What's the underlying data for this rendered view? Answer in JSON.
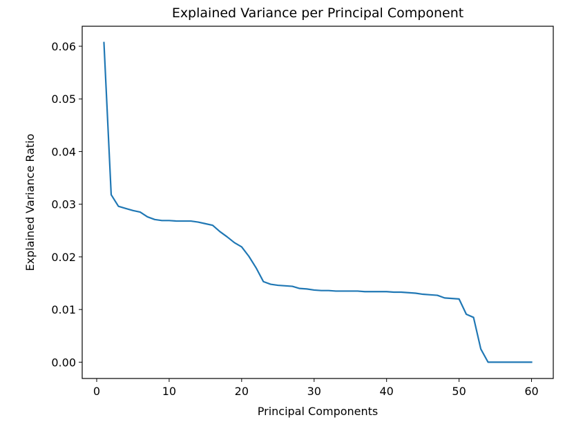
{
  "chart_data": {
    "type": "line",
    "title": "Explained Variance per Principal Component",
    "xlabel": "Principal Components",
    "ylabel": "Explained Variance Ratio",
    "xlim": [
      -2,
      63
    ],
    "ylim": [
      -0.0031,
      0.0638
    ],
    "x_ticks": [
      0,
      10,
      20,
      30,
      40,
      50,
      60
    ],
    "y_ticks": [
      0.0,
      0.01,
      0.02,
      0.03,
      0.04,
      0.05,
      0.06
    ],
    "x_tick_labels": [
      "0",
      "10",
      "20",
      "30",
      "40",
      "50",
      "60"
    ],
    "y_tick_labels": [
      "0.00",
      "0.01",
      "0.02",
      "0.03",
      "0.04",
      "0.05",
      "0.06"
    ],
    "grid": false,
    "line_color": "#1f77b4",
    "series": [
      {
        "x": [
          1,
          2,
          3,
          4,
          5,
          6,
          7,
          8,
          9,
          10,
          11,
          12,
          13,
          14,
          15,
          16,
          17,
          18,
          19,
          20,
          21,
          22,
          23,
          24,
          25,
          26,
          27,
          28,
          29,
          30,
          31,
          32,
          33,
          34,
          35,
          36,
          37,
          38,
          39,
          40,
          41,
          42,
          43,
          44,
          45,
          46,
          47,
          48,
          49,
          50,
          51,
          52,
          53,
          54,
          55,
          56,
          57,
          58,
          59,
          60
        ],
        "values": [
          0.0607,
          0.0318,
          0.0296,
          0.0292,
          0.0288,
          0.0285,
          0.0276,
          0.0271,
          0.0269,
          0.0269,
          0.0268,
          0.0268,
          0.0268,
          0.0266,
          0.0263,
          0.026,
          0.0248,
          0.0238,
          0.0227,
          0.0219,
          0.0201,
          0.0179,
          0.0153,
          0.0148,
          0.0146,
          0.0145,
          0.0144,
          0.014,
          0.0139,
          0.0137,
          0.0136,
          0.0136,
          0.0135,
          0.0135,
          0.0135,
          0.0135,
          0.0134,
          0.0134,
          0.0134,
          0.0134,
          0.0133,
          0.0133,
          0.0132,
          0.0131,
          0.0129,
          0.0128,
          0.0127,
          0.0122,
          0.0121,
          0.012,
          0.0091,
          0.0085,
          0.0025,
          0.0,
          0.0,
          0.0,
          0.0,
          0.0,
          0.0,
          0.0
        ]
      }
    ]
  }
}
